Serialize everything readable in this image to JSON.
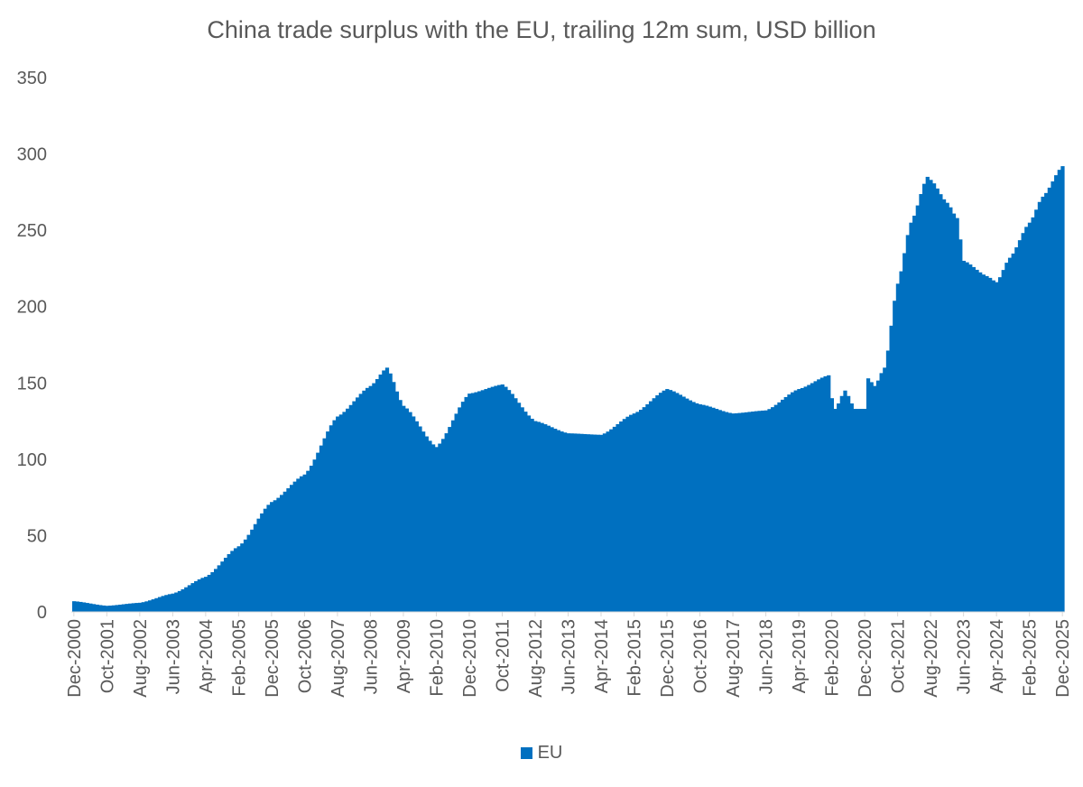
{
  "chart_data": {
    "type": "bar",
    "title": "China trade surplus with the EU, trailing 12m sum, USD billion",
    "xlabel": "",
    "ylabel": "",
    "ylim": [
      0,
      350
    ],
    "yticks": [
      "0",
      "50",
      "100",
      "150",
      "200",
      "250",
      "300",
      "350"
    ],
    "frequency": "monthly",
    "start_month": "Dec-2000",
    "end_month": "Dec-2025",
    "x_tick_labels": [
      "Dec-2000",
      "Oct-2001",
      "Aug-2002",
      "Jun-2003",
      "Apr-2004",
      "Feb-2005",
      "Dec-2005",
      "Oct-2006",
      "Aug-2007",
      "Jun-2008",
      "Apr-2009",
      "Feb-2010",
      "Dec-2010",
      "Oct-2011",
      "Aug-2012",
      "Jun-2013",
      "Apr-2014",
      "Feb-2015",
      "Dec-2015",
      "Oct-2016",
      "Aug-2017",
      "Jun-2018",
      "Apr-2019",
      "Feb-2020",
      "Dec-2020",
      "Oct-2021",
      "Aug-2022",
      "Jun-2023",
      "Apr-2024",
      "Feb-2025",
      "Dec-2025"
    ],
    "grid": false,
    "legend_position": "bottom",
    "series": [
      {
        "name": "EU",
        "color": "#0070C0",
        "anchors": [
          [
            "Dec-2000",
            7
          ],
          [
            "Oct-2001",
            4
          ],
          [
            "Aug-2002",
            6
          ],
          [
            "Jun-2003",
            12
          ],
          [
            "Apr-2004",
            23
          ],
          [
            "Feb-2005",
            43
          ],
          [
            "Dec-2005",
            72
          ],
          [
            "Oct-2006",
            90
          ],
          [
            "Aug-2007",
            128
          ],
          [
            "Jun-2008",
            148
          ],
          [
            "Nov-2008",
            160
          ],
          [
            "Apr-2009",
            135
          ],
          [
            "Feb-2010",
            108
          ],
          [
            "Dec-2010",
            143
          ],
          [
            "Oct-2011",
            149
          ],
          [
            "Aug-2012",
            125
          ],
          [
            "Jun-2013",
            117
          ],
          [
            "Apr-2014",
            116
          ],
          [
            "Feb-2015",
            130
          ],
          [
            "Dec-2015",
            146
          ],
          [
            "Oct-2016",
            136
          ],
          [
            "Aug-2017",
            130
          ],
          [
            "Jun-2018",
            132
          ],
          [
            "Apr-2019",
            146
          ],
          [
            "Jan-2020",
            155
          ],
          [
            "Feb-2020",
            140
          ],
          [
            "Mar-2020",
            133
          ],
          [
            "Jun-2020",
            145
          ],
          [
            "Sep-2020",
            133
          ],
          [
            "Dec-2020",
            133
          ],
          [
            "Jan-2021",
            153
          ],
          [
            "Mar-2021",
            148
          ],
          [
            "Jun-2021",
            160
          ],
          [
            "Oct-2021",
            215
          ],
          [
            "Feb-2022",
            255
          ],
          [
            "Jul-2022",
            285
          ],
          [
            "Aug-2022",
            283
          ],
          [
            "Jan-2023",
            268
          ],
          [
            "Apr-2023",
            258
          ],
          [
            "Jun-2023",
            230
          ],
          [
            "Jan-2024",
            220
          ],
          [
            "Apr-2024",
            216
          ],
          [
            "Aug-2024",
            232
          ],
          [
            "Feb-2025",
            255
          ],
          [
            "Jun-2025",
            272
          ],
          [
            "Dec-2025",
            292
          ]
        ]
      }
    ]
  }
}
